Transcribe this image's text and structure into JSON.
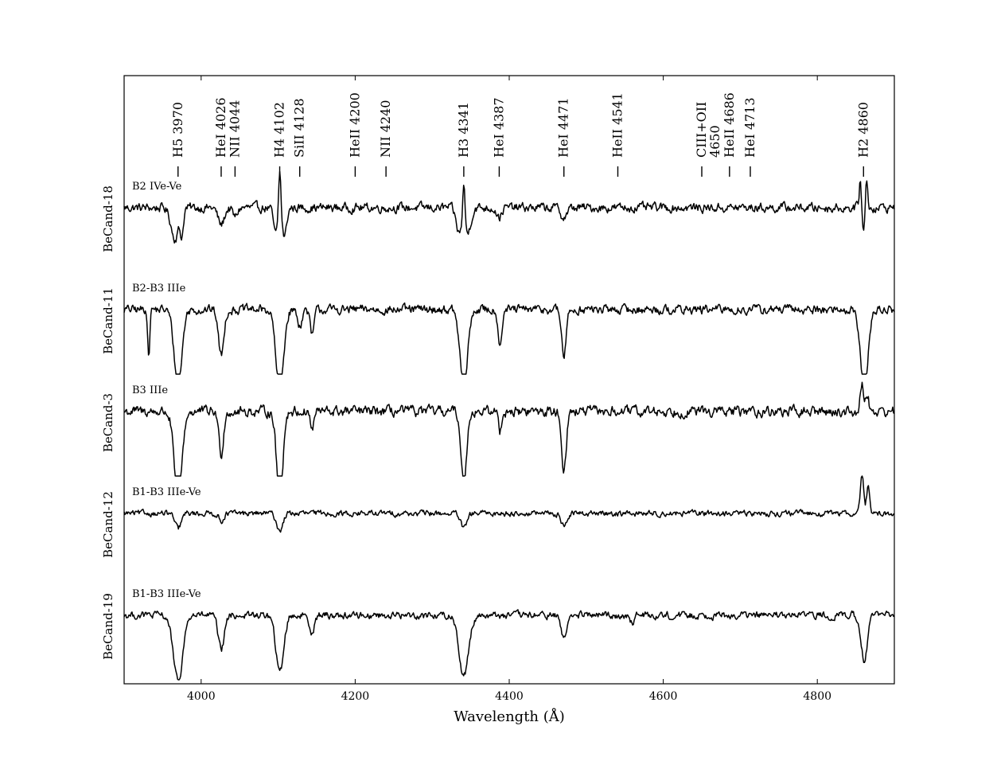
{
  "chart_data": {
    "type": "line",
    "title": "",
    "xlabel": "Wavelength (Å)",
    "ylabel": "",
    "xlim": [
      3900,
      4900
    ],
    "x_ticks": [
      4000,
      4200,
      4400,
      4600,
      4800
    ],
    "grid": false,
    "line_ids": [
      {
        "label": "H5 3970",
        "wavelength": 3970
      },
      {
        "label": "HeI 4026",
        "wavelength": 4026
      },
      {
        "label": "NII 4044",
        "wavelength": 4044
      },
      {
        "label": "H4 4102",
        "wavelength": 4102
      },
      {
        "label": "SiII 4128",
        "wavelength": 4128
      },
      {
        "label": "HeII 4200",
        "wavelength": 4200
      },
      {
        "label": "NII 4240",
        "wavelength": 4240
      },
      {
        "label": "H3 4341",
        "wavelength": 4341
      },
      {
        "label": "HeI 4387",
        "wavelength": 4387
      },
      {
        "label": "HeI 4471",
        "wavelength": 4471
      },
      {
        "label": "HeII 4541",
        "wavelength": 4541
      },
      {
        "label": "CIII+OII",
        "label2": "4650",
        "wavelength": 4650
      },
      {
        "label": "HeII 4686",
        "wavelength": 4686
      },
      {
        "label": "HeI 4713",
        "wavelength": 4713
      },
      {
        "label": "H2 4860",
        "wavelength": 4860
      }
    ],
    "series": [
      {
        "name": "BeCand-18",
        "sptype": "B2 IVe-Ve",
        "continuum": 0.0,
        "noise": 0.35,
        "features": [
          {
            "wavelength": 3966,
            "depth": 1.6,
            "width": 5
          },
          {
            "wavelength": 3975,
            "depth": 1.2,
            "width": 2
          },
          {
            "wavelength": 4026,
            "depth": 0.9,
            "width": 4
          },
          {
            "wavelength": 4044,
            "depth": 0.5,
            "width": 3
          },
          {
            "wavelength": 4097,
            "depth": 1.4,
            "width": 3
          },
          {
            "wavelength": 4102,
            "depth": -2.4,
            "width": 1.5
          },
          {
            "wavelength": 4108,
            "depth": 1.5,
            "width": 3
          },
          {
            "wavelength": 4335,
            "depth": 1.3,
            "width": 4
          },
          {
            "wavelength": 4341,
            "depth": -2.2,
            "width": 1.5
          },
          {
            "wavelength": 4346,
            "depth": 1.3,
            "width": 4
          },
          {
            "wavelength": 4387,
            "depth": 0.5,
            "width": 3
          },
          {
            "wavelength": 4471,
            "depth": 0.5,
            "width": 4
          },
          {
            "wavelength": 4856,
            "depth": -1.6,
            "width": 1.5
          },
          {
            "wavelength": 4860,
            "depth": 1.3,
            "width": 2
          },
          {
            "wavelength": 4864,
            "depth": -1.6,
            "width": 1.5
          }
        ]
      },
      {
        "name": "BeCand-11",
        "sptype": "B2-B3 IIIe",
        "continuum": 0.0,
        "noise": 0.35,
        "features": [
          {
            "wavelength": 3932,
            "depth": 2.6,
            "width": 1.2
          },
          {
            "wavelength": 3970,
            "depth": 4.0,
            "width": 5
          },
          {
            "wavelength": 4026,
            "depth": 2.4,
            "width": 3.5
          },
          {
            "wavelength": 4102,
            "depth": 4.2,
            "width": 5
          },
          {
            "wavelength": 4128,
            "depth": 0.8,
            "width": 3
          },
          {
            "wavelength": 4144,
            "depth": 1.4,
            "width": 2.5
          },
          {
            "wavelength": 4341,
            "depth": 4.0,
            "width": 5
          },
          {
            "wavelength": 4388,
            "depth": 1.8,
            "width": 2.5
          },
          {
            "wavelength": 4471,
            "depth": 2.4,
            "width": 3
          },
          {
            "wavelength": 4861,
            "depth": 4.0,
            "width": 5
          }
        ]
      },
      {
        "name": "BeCand-3",
        "sptype": "B3 IIIe",
        "continuum": 0.0,
        "noise": 0.4,
        "features": [
          {
            "wavelength": 3970,
            "depth": 4.6,
            "width": 5
          },
          {
            "wavelength": 4026,
            "depth": 2.2,
            "width": 3
          },
          {
            "wavelength": 4102,
            "depth": 4.6,
            "width": 4
          },
          {
            "wavelength": 4144,
            "depth": 1.0,
            "width": 2
          },
          {
            "wavelength": 4341,
            "depth": 3.8,
            "width": 3.5
          },
          {
            "wavelength": 4388,
            "depth": 1.0,
            "width": 2
          },
          {
            "wavelength": 4471,
            "depth": 3.0,
            "width": 3
          },
          {
            "wavelength": 4858,
            "depth": -1.5,
            "width": 2
          },
          {
            "wavelength": 4865,
            "depth": -1.0,
            "width": 2
          }
        ]
      },
      {
        "name": "BeCand-12",
        "sptype": "B1-B3 IIIe-Ve",
        "continuum": 0.0,
        "noise": 0.22,
        "features": [
          {
            "wavelength": 3970,
            "depth": 0.8,
            "width": 4
          },
          {
            "wavelength": 4026,
            "depth": 0.4,
            "width": 3
          },
          {
            "wavelength": 4102,
            "depth": 0.9,
            "width": 4
          },
          {
            "wavelength": 4341,
            "depth": 0.8,
            "width": 4
          },
          {
            "wavelength": 4471,
            "depth": 0.6,
            "width": 4
          },
          {
            "wavelength": 4858,
            "depth": -2.2,
            "width": 2
          },
          {
            "wavelength": 4866,
            "depth": -1.4,
            "width": 2
          }
        ]
      },
      {
        "name": "BeCand-19",
        "sptype": "B1-B3 IIIe-Ve",
        "continuum": 0.0,
        "noise": 0.28,
        "features": [
          {
            "wavelength": 3970,
            "depth": 3.5,
            "width": 6
          },
          {
            "wavelength": 4026,
            "depth": 1.8,
            "width": 4
          },
          {
            "wavelength": 4102,
            "depth": 3.0,
            "width": 5
          },
          {
            "wavelength": 4144,
            "depth": 0.9,
            "width": 3
          },
          {
            "wavelength": 4341,
            "depth": 3.2,
            "width": 6
          },
          {
            "wavelength": 4471,
            "depth": 1.1,
            "width": 4
          },
          {
            "wavelength": 4560,
            "depth": 0.5,
            "width": 2
          },
          {
            "wavelength": 4861,
            "depth": 2.3,
            "width": 4
          }
        ]
      }
    ]
  }
}
